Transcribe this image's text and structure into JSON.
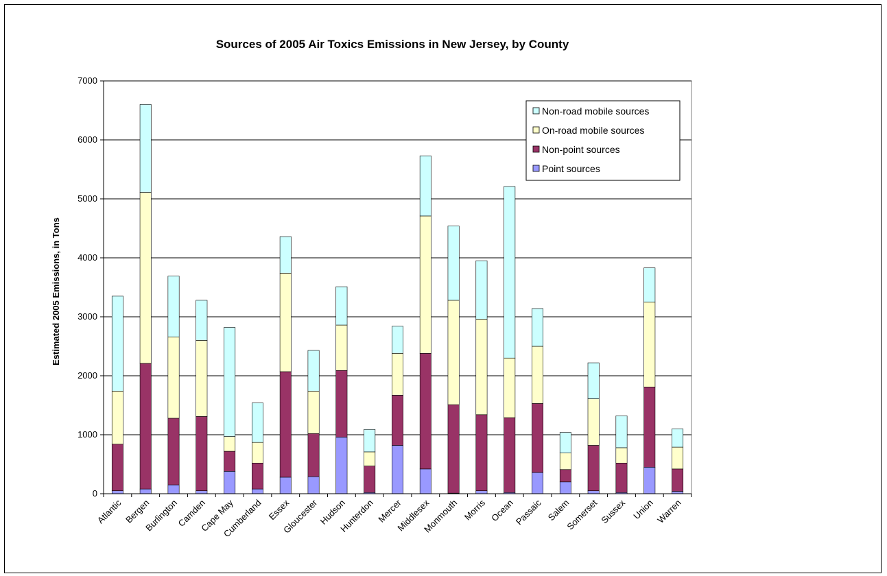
{
  "chart_data": {
    "type": "bar",
    "stacked": true,
    "title": "Sources of 2005 Air Toxics Emissions in New Jersey, by County",
    "xlabel": "",
    "ylabel": "Estimated 2005 Emissions, in Tons",
    "ylim": [
      0,
      7000
    ],
    "yticks": [
      "0",
      "1000",
      "2000",
      "3000",
      "4000",
      "5000",
      "6000",
      "7000"
    ],
    "grid": true,
    "legend_position": "top-right",
    "categories": [
      "Atlantic",
      "Bergen",
      "Burlington",
      "Camden",
      "Cape May",
      "Cumberland",
      "Essex",
      "Gloucester",
      "Hudson",
      "Hunterdon",
      "Mercer",
      "Middlesex",
      "Monmouth",
      "Morris",
      "Ocean",
      "Passaic",
      "Salem",
      "Somerset",
      "Sussex",
      "Union",
      "Warren"
    ],
    "series": [
      {
        "name": "Point sources",
        "color": "#9999ff",
        "values": [
          50,
          80,
          150,
          50,
          380,
          80,
          280,
          290,
          960,
          20,
          820,
          420,
          10,
          50,
          20,
          360,
          200,
          50,
          20,
          450,
          40
        ]
      },
      {
        "name": "Non-point sources",
        "color": "#993366",
        "values": [
          790,
          2130,
          1130,
          1260,
          340,
          440,
          1790,
          730,
          1130,
          450,
          850,
          1960,
          1500,
          1290,
          1270,
          1170,
          210,
          770,
          500,
          1360,
          380
        ]
      },
      {
        "name": "On-road mobile sources",
        "color": "#ffffcc",
        "values": [
          900,
          2900,
          1380,
          1290,
          250,
          350,
          1670,
          720,
          770,
          240,
          710,
          2330,
          1770,
          1620,
          1010,
          970,
          280,
          790,
          260,
          1440,
          370
        ]
      },
      {
        "name": "Non-road mobile sources",
        "color": "#ccffff",
        "values": [
          1610,
          1490,
          1030,
          680,
          1850,
          670,
          620,
          690,
          650,
          380,
          460,
          1020,
          1260,
          990,
          2910,
          640,
          350,
          610,
          540,
          580,
          310
        ]
      }
    ]
  }
}
